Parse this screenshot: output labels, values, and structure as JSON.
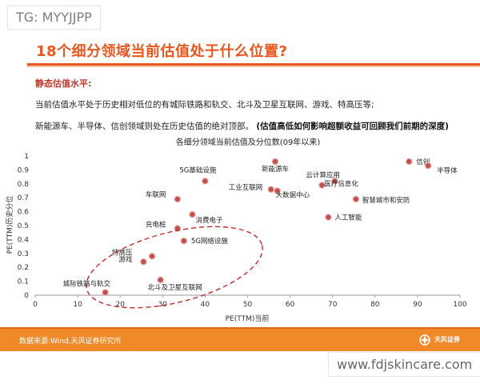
{
  "overlay": {
    "tg_tag": "TG: MYYJJPP",
    "url_tag": "www.fdjskincare.com"
  },
  "header": {
    "title": "18个细分领域当前估值处于什么位置?"
  },
  "content": {
    "subhead": "静态估值水平:",
    "para1": "当前估值水平处于历史相对低位的有城际铁路和轨交、北斗及卫星互联网、游戏、特高压等;",
    "para2_normal": "新能源车、半导体、信创领域则处在历史估值的绝对顶部。",
    "para2_bold": "(估值高低如何影响超额收益可回顾我们前期的深度)"
  },
  "footer": {
    "source": "数据来源:Wind,天风证券研究所",
    "logo_text": "天风证券"
  },
  "colors": {
    "accent": "#e8571f",
    "dot_fill": "#c1504d",
    "dot_stroke": "#e7a3a1",
    "ellipse": "#c62828",
    "footer": "#f08a28"
  },
  "chart_data": {
    "type": "scatter",
    "title": "各细分领域当前估值及分位数(09年以来)",
    "xlabel": "PE(TTM)当前",
    "ylabel": "PE(TTM)历史分位",
    "xlim": [
      0,
      100
    ],
    "ylim": [
      0,
      1
    ],
    "xticks": [
      0,
      10,
      20,
      30,
      40,
      50,
      60,
      70,
      80,
      90,
      100
    ],
    "yticks": [
      0,
      0.1,
      0.2,
      0.3,
      0.4,
      0.5,
      0.6,
      0.7,
      0.8,
      0.9,
      1
    ],
    "grid": false,
    "points": [
      {
        "label": "城际铁路与轨交",
        "x": 16.5,
        "y": 0.02
      },
      {
        "label": "北斗及卫星互联网",
        "x": 29.5,
        "y": 0.11
      },
      {
        "label": "游戏",
        "x": 25.5,
        "y": 0.24
      },
      {
        "label": "特高压",
        "x": 27.5,
        "y": 0.28
      },
      {
        "label": "5G网络设施",
        "x": 35.0,
        "y": 0.39
      },
      {
        "label": "充电桩",
        "x": 33.5,
        "y": 0.48
      },
      {
        "label": "消费电子",
        "x": 37.0,
        "y": 0.58
      },
      {
        "label": "车联网",
        "x": 33.5,
        "y": 0.69
      },
      {
        "label": "5G基础设施",
        "x": 40.0,
        "y": 0.82
      },
      {
        "label": "新能源车",
        "x": 56.5,
        "y": 0.96
      },
      {
        "label": "工业互联网",
        "x": 55.5,
        "y": 0.76
      },
      {
        "label": "大数据中心",
        "x": 57.0,
        "y": 0.75
      },
      {
        "label": "云计算应用",
        "x": 67.5,
        "y": 0.79
      },
      {
        "label": "医疗信息化",
        "x": 70.5,
        "y": 0.82
      },
      {
        "label": "智慧城市和安防",
        "x": 75.5,
        "y": 0.69
      },
      {
        "label": "人工智能",
        "x": 69.0,
        "y": 0.56
      },
      {
        "label": "信创",
        "x": 88.0,
        "y": 0.96
      },
      {
        "label": "半导体",
        "x": 92.5,
        "y": 0.93
      }
    ]
  }
}
